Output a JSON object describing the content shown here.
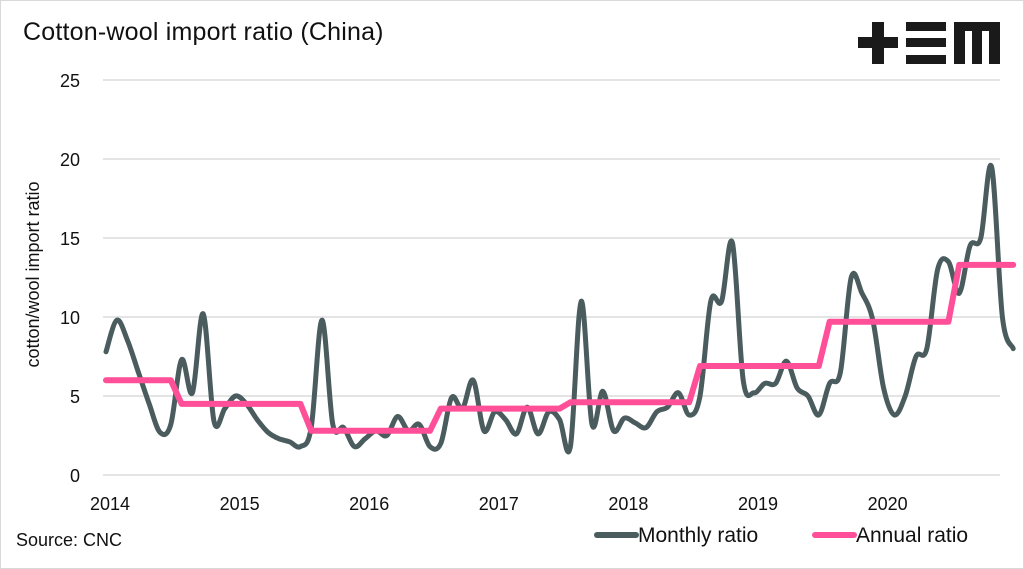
{
  "header": {
    "title": "Cotton-wool import ratio (China)",
    "logo_text": "+EM"
  },
  "footer": {
    "source": "Source: CNC"
  },
  "colors": {
    "monthly": "#4a5c5e",
    "annual": "#ff4f98",
    "grid": "#dcdcdc",
    "text": "#111111"
  },
  "chart_data": {
    "type": "line",
    "title": "Cotton-wool import ratio (China)",
    "xlabel": "",
    "ylabel": "cotton/wool import ratio",
    "ylim": [
      0,
      25
    ],
    "yticks": [
      0,
      5,
      10,
      15,
      20,
      25
    ],
    "xlim": [
      2014.0,
      2021.0
    ],
    "xtick_labels": [
      "2014",
      "2015",
      "2016",
      "2017",
      "2018",
      "2019",
      "2020"
    ],
    "xtick_values": [
      2014,
      2015,
      2016,
      2017,
      2018,
      2019,
      2020
    ],
    "grid": "horizontal",
    "legend_position": "bottom-right",
    "series": [
      {
        "name": "Monthly ratio",
        "color": "#4a5c5e",
        "x_start": "2014-01",
        "frequency": "monthly",
        "values": [
          7.8,
          9.8,
          8.5,
          6.5,
          4.5,
          2.7,
          3.2,
          7.3,
          5.2,
          10.2,
          3.4,
          4.2,
          5.0,
          4.5,
          3.5,
          2.7,
          2.3,
          2.1,
          1.8,
          3.0,
          9.8,
          3.2,
          3.0,
          1.8,
          2.3,
          2.8,
          2.5,
          3.7,
          2.8,
          3.2,
          1.8,
          2.0,
          4.9,
          4.2,
          6.0,
          2.8,
          4.0,
          3.5,
          2.6,
          4.3,
          2.6,
          4.0,
          3.5,
          1.8,
          11.0,
          3.2,
          5.3,
          2.8,
          3.6,
          3.3,
          3.0,
          4.0,
          4.3,
          5.2,
          3.8,
          5.0,
          11.0,
          11.0,
          14.7,
          6.0,
          5.2,
          5.8,
          5.8,
          7.2,
          5.5,
          5.0,
          3.8,
          5.8,
          6.5,
          12.5,
          11.5,
          9.8,
          5.5,
          3.8,
          5.0,
          7.5,
          8.0,
          13.0,
          13.5,
          11.5,
          14.5,
          15.0,
          19.5,
          10.0,
          8.0
        ]
      },
      {
        "name": "Annual ratio",
        "color": "#ff4f98",
        "frequency": "annual-step",
        "steps": [
          {
            "from": "2014-01",
            "to": "2014-07",
            "value": 6.0
          },
          {
            "from": "2014-08",
            "to": "2015-07",
            "value": 4.5
          },
          {
            "from": "2015-08",
            "to": "2016-07",
            "value": 2.8
          },
          {
            "from": "2016-08",
            "to": "2017-07",
            "value": 4.2
          },
          {
            "from": "2017-08",
            "to": "2018-07",
            "value": 4.6
          },
          {
            "from": "2018-08",
            "to": "2019-07",
            "value": 6.9
          },
          {
            "from": "2019-08",
            "to": "2020-07",
            "value": 9.7
          },
          {
            "from": "2020-08",
            "to": "2021-01",
            "value": 13.3
          }
        ]
      }
    ]
  }
}
